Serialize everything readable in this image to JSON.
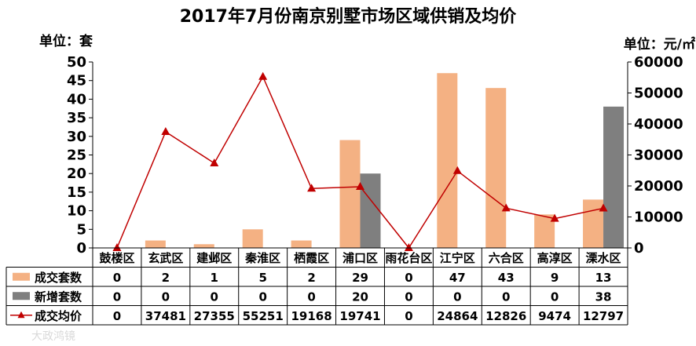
{
  "chart_data": {
    "type": "bar",
    "title": "2017年7月份南京别墅市场区域供销及均价",
    "y_left_unit": "单位：套",
    "y_right_unit": "单位：元/㎡",
    "ylim_left": [
      0,
      50
    ],
    "ylim_right": [
      0,
      60000
    ],
    "y_left_ticks": [
      "0",
      "5",
      "10",
      "15",
      "20",
      "25",
      "30",
      "35",
      "40",
      "45",
      "50"
    ],
    "y_right_ticks": [
      "0",
      "10000",
      "20000",
      "30000",
      "40000",
      "50000",
      "60000"
    ],
    "categories": [
      "鼓楼区",
      "玄武区",
      "建邺区",
      "秦淮区",
      "栖霞区",
      "浦口区",
      "雨花台区",
      "江宁区",
      "六合区",
      "高淳区",
      "溧水区"
    ],
    "series": [
      {
        "name": "成交套数",
        "type": "bar",
        "axis": "left",
        "color": "#f4b183",
        "values": [
          0,
          2,
          1,
          5,
          2,
          29,
          0,
          47,
          43,
          9,
          13
        ],
        "labels": [
          "0",
          "2",
          "1",
          "5",
          "2",
          "29",
          "0",
          "47",
          "43",
          "9",
          "13"
        ]
      },
      {
        "name": "新增套数",
        "type": "bar",
        "axis": "left",
        "color": "#7f7f7f",
        "values": [
          0,
          0,
          0,
          0,
          0,
          20,
          0,
          0,
          0,
          0,
          38
        ],
        "labels": [
          "0",
          "0",
          "0",
          "0",
          "0",
          "20",
          "0",
          "0",
          "0",
          "0",
          "38"
        ]
      },
      {
        "name": "成交均价",
        "type": "line",
        "axis": "right",
        "color": "#c00000",
        "values": [
          0,
          37481,
          27355,
          55251,
          19168,
          19741,
          0,
          24864,
          12826,
          9474,
          12797
        ],
        "labels": [
          "0",
          "37481",
          "27355",
          "55251",
          "19168",
          "19741",
          "0",
          "24864",
          "12826",
          "9474",
          "12797"
        ]
      }
    ],
    "legend": "data-table-left"
  },
  "watermark": "大政鸿镜"
}
